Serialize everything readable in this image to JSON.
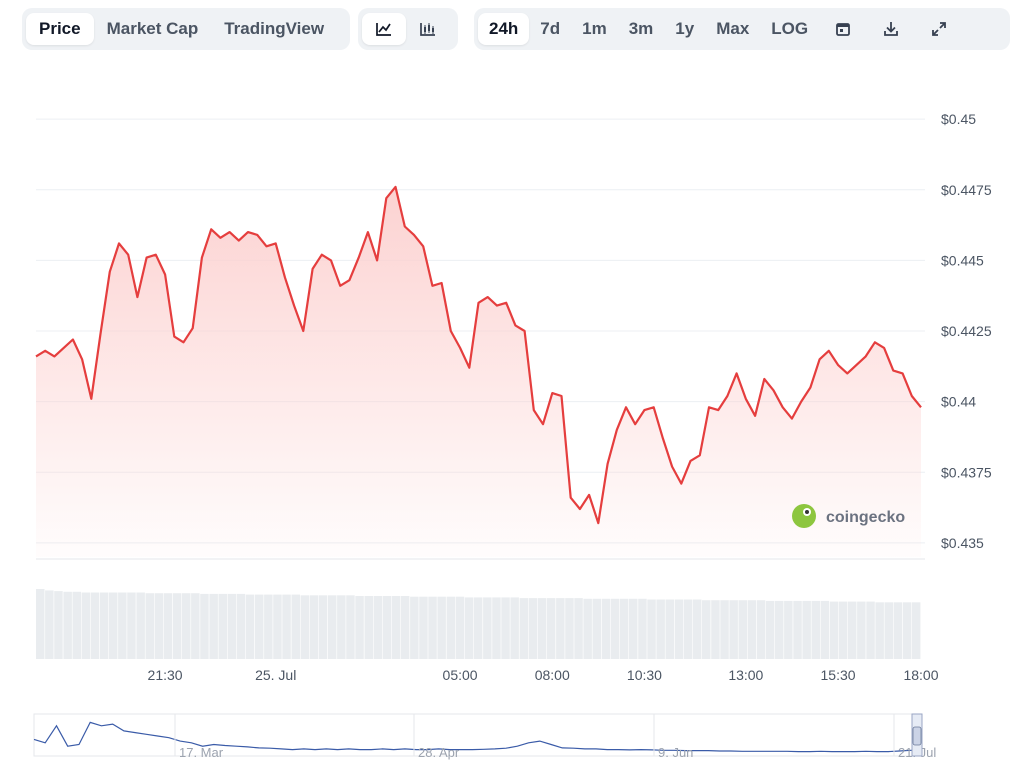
{
  "toolbar": {
    "view_tabs": [
      {
        "label": "Price",
        "active": true
      },
      {
        "label": "Market Cap",
        "active": false
      },
      {
        "label": "TradingView",
        "active": false
      }
    ],
    "chart_types": [
      {
        "icon": "line-chart-icon",
        "active": true
      },
      {
        "icon": "candlestick-chart-icon",
        "active": false
      }
    ],
    "ranges": [
      {
        "label": "24h",
        "active": true
      },
      {
        "label": "7d",
        "active": false
      },
      {
        "label": "1m",
        "active": false
      },
      {
        "label": "3m",
        "active": false
      },
      {
        "label": "1y",
        "active": false
      },
      {
        "label": "Max",
        "active": false
      },
      {
        "label": "LOG",
        "active": false
      }
    ],
    "tools": [
      "calendar-icon",
      "download-icon",
      "expand-icon"
    ]
  },
  "watermark": {
    "text": "coingecko",
    "icon": "gecko-logo-icon"
  },
  "colors": {
    "line": "#e53e3e",
    "fill_top": "#fcd0cf",
    "volume": "#e9ecef",
    "nav_line": "#3a5ba8",
    "grid": "#eceff3"
  },
  "chart_data": {
    "type": "line",
    "title": "",
    "xlabel": "",
    "ylabel": "",
    "ylim": [
      0.4345,
      0.4505
    ],
    "y_ticks": [
      {
        "v": 0.45,
        "label": "$0.45"
      },
      {
        "v": 0.4475,
        "label": "$0.4475"
      },
      {
        "v": 0.445,
        "label": "$0.445"
      },
      {
        "v": 0.4425,
        "label": "$0.4425"
      },
      {
        "v": 0.44,
        "label": "$0.44"
      },
      {
        "v": 0.4375,
        "label": "$0.4375"
      },
      {
        "v": 0.435,
        "label": "$0.435"
      }
    ],
    "x_ticks": [
      {
        "i": 14,
        "label": "21:30"
      },
      {
        "i": 26,
        "label": "25. Jul"
      },
      {
        "i": 46,
        "label": "05:00"
      },
      {
        "i": 56,
        "label": "08:00"
      },
      {
        "i": 66,
        "label": "10:30"
      },
      {
        "i": 77,
        "label": "13:00"
      },
      {
        "i": 87,
        "label": "15:30"
      },
      {
        "i": 96,
        "label": "18:00"
      }
    ],
    "series": [
      {
        "values": [
          0.4416,
          0.4418,
          0.4416,
          0.4419,
          0.4422,
          0.4415,
          0.4401,
          0.4424,
          0.4446,
          0.4456,
          0.4452,
          0.4437,
          0.4451,
          0.4452,
          0.4445,
          0.4423,
          0.4421,
          0.4426,
          0.4451,
          0.4461,
          0.4458,
          0.446,
          0.4457,
          0.446,
          0.4459,
          0.4455,
          0.4456,
          0.4444,
          0.4434,
          0.4425,
          0.4447,
          0.4452,
          0.445,
          0.4441,
          0.4443,
          0.4451,
          0.446,
          0.445,
          0.4472,
          0.4476,
          0.4462,
          0.4459,
          0.4455,
          0.4441,
          0.4442,
          0.4425,
          0.4419,
          0.4412,
          0.4435,
          0.4437,
          0.4434,
          0.4435,
          0.4427,
          0.4425,
          0.4397,
          0.4392,
          0.4403,
          0.4402,
          0.4366,
          0.4362,
          0.4367,
          0.4357,
          0.4378,
          0.439,
          0.4398,
          0.4392,
          0.4397,
          0.4398,
          0.4387,
          0.4377,
          0.4371,
          0.4379,
          0.4381,
          0.4398,
          0.4397,
          0.4402,
          0.441,
          0.4401,
          0.4395,
          0.4408,
          0.4404,
          0.4398,
          0.4394,
          0.44,
          0.4405,
          0.4415,
          0.4418,
          0.4413,
          0.441,
          0.4413,
          0.4416,
          0.4421,
          0.4419,
          0.4411,
          0.441,
          0.4402,
          0.4398
        ],
        "volume": [
          1.0,
          0.98,
          0.97,
          0.96,
          0.96,
          0.95,
          0.95,
          0.95,
          0.95,
          0.95,
          0.95,
          0.95,
          0.94,
          0.94,
          0.94,
          0.94,
          0.94,
          0.94,
          0.93,
          0.93,
          0.93,
          0.93,
          0.93,
          0.92,
          0.92,
          0.92,
          0.92,
          0.92,
          0.92,
          0.91,
          0.91,
          0.91,
          0.91,
          0.91,
          0.91,
          0.9,
          0.9,
          0.9,
          0.9,
          0.9,
          0.9,
          0.89,
          0.89,
          0.89,
          0.89,
          0.89,
          0.89,
          0.88,
          0.88,
          0.88,
          0.88,
          0.88,
          0.88,
          0.87,
          0.87,
          0.87,
          0.87,
          0.87,
          0.87,
          0.87,
          0.86,
          0.86,
          0.86,
          0.86,
          0.86,
          0.86,
          0.86,
          0.85,
          0.85,
          0.85,
          0.85,
          0.85,
          0.85,
          0.84,
          0.84,
          0.84,
          0.84,
          0.84,
          0.84,
          0.84,
          0.83,
          0.83,
          0.83,
          0.83,
          0.83,
          0.83,
          0.83,
          0.82,
          0.82,
          0.82,
          0.82,
          0.82,
          0.81,
          0.81,
          0.81,
          0.81,
          0.81
        ]
      }
    ],
    "navigator": {
      "x_labels": [
        "17. Mar",
        "28. Apr",
        "9. Jun",
        "21. Jul"
      ],
      "values": [
        0.4,
        0.3,
        0.8,
        0.2,
        0.25,
        0.9,
        0.8,
        0.85,
        0.65,
        0.6,
        0.55,
        0.5,
        0.45,
        0.35,
        0.3,
        0.2,
        0.25,
        0.22,
        0.2,
        0.18,
        0.15,
        0.14,
        0.12,
        0.1,
        0.12,
        0.1,
        0.12,
        0.1,
        0.12,
        0.1,
        0.1,
        0.12,
        0.1,
        0.12,
        0.1,
        0.1,
        0.12,
        0.1,
        0.1,
        0.1,
        0.11,
        0.12,
        0.14,
        0.2,
        0.3,
        0.35,
        0.25,
        0.15,
        0.14,
        0.12,
        0.12,
        0.1,
        0.1,
        0.09,
        0.1,
        0.09,
        0.08,
        0.08,
        0.07,
        0.07,
        0.07,
        0.06,
        0.06,
        0.05,
        0.05,
        0.05,
        0.05,
        0.05,
        0.04,
        0.04,
        0.05,
        0.04,
        0.04,
        0.04,
        0.05,
        0.04,
        0.04,
        0.06,
        0.08,
        0.08
      ]
    },
    "grid": true,
    "legend": "none"
  }
}
